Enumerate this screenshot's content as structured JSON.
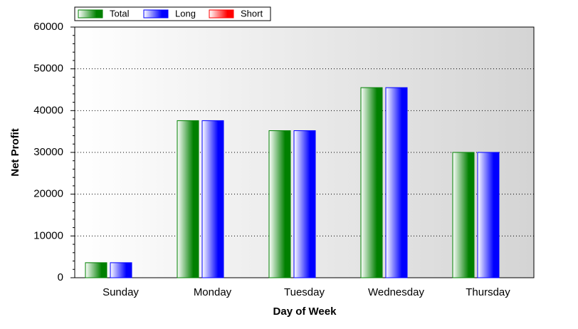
{
  "chart_data": {
    "type": "bar",
    "x_label": "Day of Week",
    "y_label": "Net Profit",
    "categories": [
      "Sunday",
      "Monday",
      "Tuesday",
      "Wednesday",
      "Thursday"
    ],
    "series": [
      {
        "name": "Total",
        "color": "#008000",
        "values": [
          3600,
          37600,
          35200,
          45500,
          30000
        ]
      },
      {
        "name": "Long",
        "color": "#0000ff",
        "values": [
          3600,
          37600,
          35200,
          45500,
          30000
        ]
      },
      {
        "name": "Short",
        "color": "#ff0000",
        "values": [
          0,
          0,
          0,
          0,
          0
        ]
      }
    ],
    "ylim": [
      0,
      60000
    ],
    "yticks": [
      0,
      10000,
      20000,
      30000,
      40000,
      50000,
      60000
    ],
    "grid": true,
    "legend": "top-left"
  }
}
